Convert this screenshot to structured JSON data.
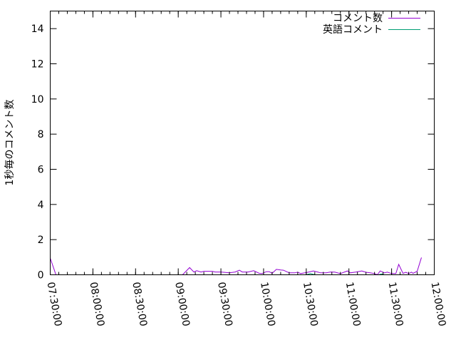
{
  "chart_data": {
    "type": "line",
    "title": "",
    "xlabel": "",
    "ylabel": "1秒毎のコメント数",
    "xlim": [
      "07:30:00",
      "12:00:00"
    ],
    "ylim": [
      0,
      15
    ],
    "x_ticks": [
      "07:30:00",
      "08:00:00",
      "08:30:00",
      "09:00:00",
      "09:30:00",
      "10:00:00",
      "10:30:00",
      "11:00:00",
      "11:30:00",
      "12:00:00"
    ],
    "y_ticks": [
      0,
      2,
      4,
      6,
      8,
      10,
      12,
      14
    ],
    "grid": false,
    "legend_position": "top-right",
    "series": [
      {
        "name": "コメント数",
        "color": "#9400d3",
        "points": [
          [
            "07:30",
            0.95
          ],
          [
            "07:34",
            0
          ],
          [
            "08:55",
            0
          ],
          [
            "09:03",
            0
          ],
          [
            "09:08",
            0.41
          ],
          [
            "09:11",
            0.16
          ],
          [
            "09:13",
            0.23
          ],
          [
            "09:16",
            0.16
          ],
          [
            "09:18",
            0.2
          ],
          [
            "09:24",
            0.2
          ],
          [
            "09:26",
            0.16
          ],
          [
            "09:30",
            0.16
          ],
          [
            "09:36",
            0.11
          ],
          [
            "09:40",
            0.16
          ],
          [
            "09:43",
            0.26
          ],
          [
            "09:45",
            0.16
          ],
          [
            "09:49",
            0.16
          ],
          [
            "09:53",
            0.23
          ],
          [
            "09:57",
            0.08
          ],
          [
            "09:59",
            0.07
          ],
          [
            "10:02",
            0.18
          ],
          [
            "10:04",
            0.18
          ],
          [
            "10:06",
            0.08
          ],
          [
            "10:09",
            0.31
          ],
          [
            "10:12",
            0.27
          ],
          [
            "10:14",
            0.26
          ],
          [
            "10:18",
            0.11
          ],
          [
            "10:22",
            0.11
          ],
          [
            "10:24",
            0.15
          ],
          [
            "10:26",
            0.07
          ],
          [
            "10:29",
            0.11
          ],
          [
            "10:31",
            0.14
          ],
          [
            "10:35",
            0.22
          ],
          [
            "10:38",
            0.16
          ],
          [
            "10:40",
            0.11
          ],
          [
            "10:44",
            0.11
          ],
          [
            "10:47",
            0.16
          ],
          [
            "10:50",
            0.15
          ],
          [
            "10:54",
            0.07
          ],
          [
            "10:59",
            0.22
          ],
          [
            "11:01",
            0.11
          ],
          [
            "11:05",
            0.16
          ],
          [
            "11:09",
            0.22
          ],
          [
            "11:12",
            0.14
          ],
          [
            "11:15",
            0.11
          ],
          [
            "11:18",
            0.07
          ],
          [
            "11:20",
            0
          ],
          [
            "11:22",
            0.22
          ],
          [
            "11:25",
            0.11
          ],
          [
            "11:27",
            0.15
          ],
          [
            "11:30",
            0.07
          ],
          [
            "11:33",
            0.07
          ],
          [
            "11:35",
            0.59
          ],
          [
            "11:38",
            0.08
          ],
          [
            "11:40",
            0.14
          ],
          [
            "11:42",
            0.07
          ],
          [
            "11:44",
            0.15
          ],
          [
            "11:45",
            0.08
          ],
          [
            "11:48",
            0.2
          ],
          [
            "11:51",
            0.98
          ]
        ]
      },
      {
        "name": "英語コメント",
        "color": "#009e73",
        "points": [
          [
            "07:30",
            0
          ],
          [
            "09:05",
            0
          ],
          [
            "10:30",
            0
          ],
          [
            "10:33",
            0.07
          ],
          [
            "10:36",
            0
          ],
          [
            "11:21",
            0
          ],
          [
            "11:23",
            0.05
          ],
          [
            "11:25",
            0
          ],
          [
            "11:42",
            0
          ]
        ]
      }
    ]
  }
}
